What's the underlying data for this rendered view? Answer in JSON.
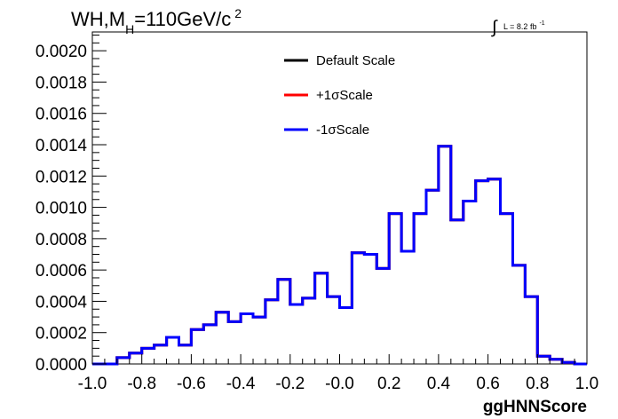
{
  "chart_data": {
    "type": "line",
    "title_main": "WH,M",
    "title_sub": "H",
    "title_rest": "=110GeV/c",
    "title_sup": "2",
    "lumi_integral": "∫",
    "lumi_text": "L = 8.2 fb",
    "lumi_sup": "-1",
    "xlabel": "ggHNNScore",
    "ylabel": "",
    "xlim": [
      -1.0,
      1.0
    ],
    "ylim": [
      0.0,
      0.00212
    ],
    "xticks": [
      "-1.0",
      "-0.8",
      "-0.6",
      "-0.4",
      "-0.2",
      "-0.0",
      "0.2",
      "0.4",
      "0.6",
      "0.8",
      "1.0"
    ],
    "xtick_values": [
      -1.0,
      -0.8,
      -0.6,
      -0.4,
      -0.2,
      0.0,
      0.2,
      0.4,
      0.6,
      0.8,
      1.0
    ],
    "yticks": [
      "0.0000",
      "0.0002",
      "0.0004",
      "0.0006",
      "0.0008",
      "0.0010",
      "0.0012",
      "0.0014",
      "0.0016",
      "0.0018",
      "0.0020"
    ],
    "ytick_values": [
      0.0,
      0.0002,
      0.0004,
      0.0006,
      0.0008,
      0.001,
      0.0012,
      0.0014,
      0.0016,
      0.0018,
      0.002
    ],
    "legend_position": "top-center",
    "bin_edges": [
      -1.0,
      -0.95,
      -0.9,
      -0.85,
      -0.8,
      -0.75,
      -0.7,
      -0.65,
      -0.6,
      -0.55,
      -0.5,
      -0.45,
      -0.4,
      -0.35,
      -0.3,
      -0.25,
      -0.2,
      -0.15,
      -0.1,
      -0.05,
      0.0,
      0.05,
      0.1,
      0.15,
      0.2,
      0.25,
      0.3,
      0.35,
      0.4,
      0.45,
      0.5,
      0.55,
      0.6,
      0.65,
      0.7,
      0.75,
      0.8,
      0.85,
      0.9,
      0.95,
      1.0
    ],
    "series": [
      {
        "name": "Default Scale",
        "color": "#000000",
        "values": [
          0.0,
          0.0,
          4e-05,
          7e-05,
          0.0001,
          0.00012,
          0.00017,
          0.00012,
          0.00022,
          0.00025,
          0.00033,
          0.00027,
          0.00032,
          0.0003,
          0.00041,
          0.00054,
          0.00038,
          0.00042,
          0.00058,
          0.00043,
          0.00036,
          0.00071,
          0.0007,
          0.00061,
          0.00096,
          0.00072,
          0.00096,
          0.00111,
          0.00139,
          0.00092,
          0.00104,
          0.00117,
          0.00118,
          0.00096,
          0.00063,
          0.00043,
          5e-05,
          3e-05,
          1e-05,
          0.0
        ]
      },
      {
        "name": "+1σScale",
        "color": "#ff0000",
        "values": [
          0.0,
          0.0,
          4e-05,
          7e-05,
          0.0001,
          0.00012,
          0.00017,
          0.00012,
          0.00022,
          0.00025,
          0.00033,
          0.00027,
          0.00032,
          0.0003,
          0.00041,
          0.00054,
          0.00038,
          0.00042,
          0.00058,
          0.00043,
          0.00036,
          0.00071,
          0.0007,
          0.00061,
          0.00096,
          0.00072,
          0.00096,
          0.00111,
          0.00139,
          0.00092,
          0.00104,
          0.00117,
          0.00118,
          0.00096,
          0.00063,
          0.00043,
          5e-05,
          3e-05,
          1e-05,
          0.0
        ]
      },
      {
        "name": "-1σScale",
        "color": "#0000ff",
        "values": [
          0.0,
          0.0,
          4e-05,
          7e-05,
          0.0001,
          0.00012,
          0.00017,
          0.00012,
          0.00022,
          0.00025,
          0.00033,
          0.00027,
          0.00032,
          0.0003,
          0.00041,
          0.00054,
          0.00038,
          0.00042,
          0.00058,
          0.00043,
          0.00036,
          0.00071,
          0.0007,
          0.00061,
          0.00096,
          0.00072,
          0.00096,
          0.00111,
          0.00139,
          0.00092,
          0.00104,
          0.00117,
          0.00118,
          0.00096,
          0.00063,
          0.00043,
          5e-05,
          3e-05,
          1e-05,
          0.0
        ]
      }
    ]
  }
}
